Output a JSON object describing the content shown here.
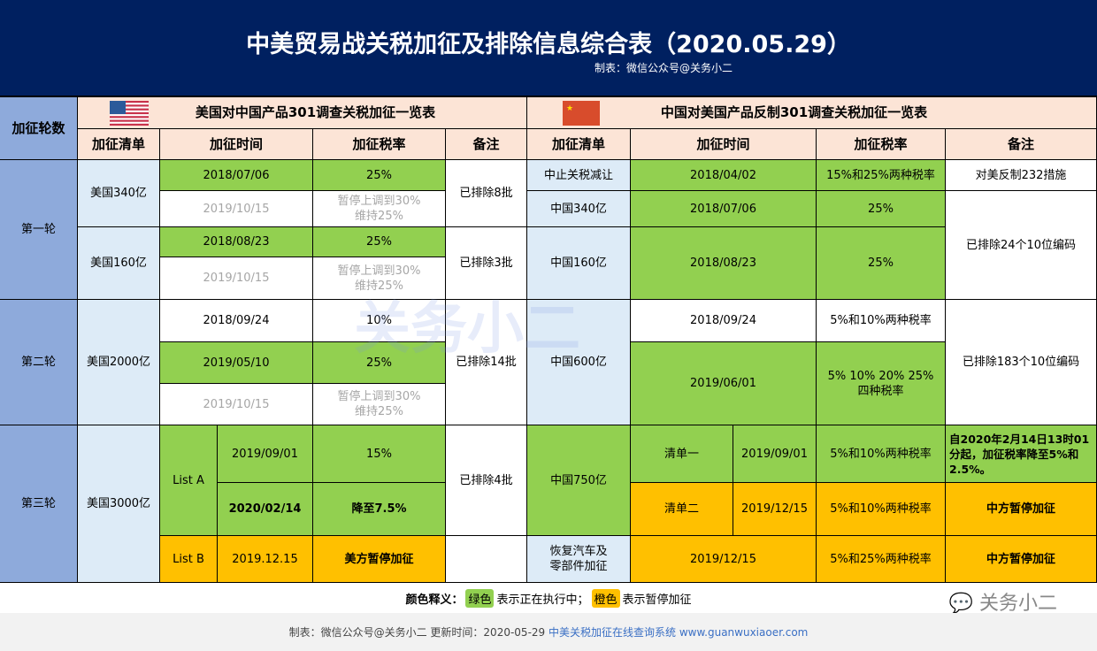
{
  "header": {
    "title": "中美贸易战关税加征及排除信息综合表（2020.05.29）",
    "subtitle": "制表：微信公众号@关务小二"
  },
  "round_header": "加征轮数",
  "rounds": [
    "第一轮",
    "第二轮",
    "第三轮"
  ],
  "us": {
    "title": "美国对中国产品301调查关税加征一览表",
    "cols": [
      "加征清单",
      "加征时间",
      "加征税率",
      "备注"
    ],
    "r1": {
      "l1": "美国340亿",
      "l1d1": "2018/07/06",
      "l1t1": "25%",
      "l1d2": "2019/10/15",
      "l1t2a": "暂停上调到30%",
      "l1t2b": "维持25%",
      "l1n": "已排除8批",
      "l2": "美国160亿",
      "l2d1": "2018/08/23",
      "l2t1": "25%",
      "l2d2": "2019/10/15",
      "l2t2a": "暂停上调到30%",
      "l2t2b": "维持25%",
      "l2n": "已排除3批"
    },
    "r2": {
      "l": "美国2000亿",
      "d1": "2018/09/24",
      "t1": "10%",
      "d2": "2019/05/10",
      "t2": "25%",
      "d3": "2019/10/15",
      "t3a": "暂停上调到30%",
      "t3b": "维持25%",
      "n": "已排除14批"
    },
    "r3": {
      "l": "美国3000亿",
      "la": "List A",
      "la_d1": "2019/09/01",
      "la_t1": "15%",
      "la_d2": "2020/02/14",
      "la_t2": "降至7.5%",
      "la_n": "已排除4批",
      "lb": "List B",
      "lb_d": "2019.12.15",
      "lb_t": "美方暂停加征"
    }
  },
  "cn": {
    "title": "中国对美国产品反制301调查关税加征一览表",
    "cols": [
      "加征清单",
      "加征时间",
      "加征税率",
      "备注"
    ],
    "r1": {
      "l0": "中止关税减让",
      "d0": "2018/04/02",
      "t0": "15%和25%两种税率",
      "n0": "对美反制232措施",
      "l1": "中国340亿",
      "d1": "2018/07/06",
      "t1": "25%",
      "l2": "中国160亿",
      "d2": "2018/08/23",
      "t2": "25%",
      "n": "已排除24个10位编码"
    },
    "r2": {
      "l": "中国600亿",
      "d1": "2018/09/24",
      "t1": "5%和10%两种税率",
      "d2": "2019/06/01",
      "t2a": "5% 10% 20% 25%",
      "t2b": "四种税率",
      "n": "已排除183个10位编码"
    },
    "r3": {
      "l": "中国750亿",
      "s1": "清单一",
      "d1": "2019/09/01",
      "t1": "5%和10%两种税率",
      "n1": "自2020年2月14日13时01分起，加征税率降至5%和2.5%。",
      "s2": "清单二",
      "d2": "2019/12/15",
      "t2": "5%和10%两种税率",
      "n2": "中方暂停加征",
      "l3a": "恢复汽车及",
      "l3b": "零部件加征",
      "d3": "2019/12/15",
      "t3": "5%和25%两种税率",
      "n3": "中方暂停加征"
    }
  },
  "legend": {
    "label": "颜色释义：",
    "green": "绿色",
    "green_text": "表示正在执行中；",
    "orange": "橙色",
    "orange_text": "表示暂停加征"
  },
  "footer": {
    "text": "制表：微信公众号@关务小二  更新时间：2020-05-29",
    "link": "中美关税加征在线查询系统 www.guanwuxiaoer.com"
  },
  "watermark": "关务小二",
  "colors": {
    "navy": "#002060",
    "green": "#92d050",
    "orange": "#ffc000",
    "blue": "#ddebf7",
    "round": "#8eaadb",
    "peach": "#fce4d6"
  }
}
